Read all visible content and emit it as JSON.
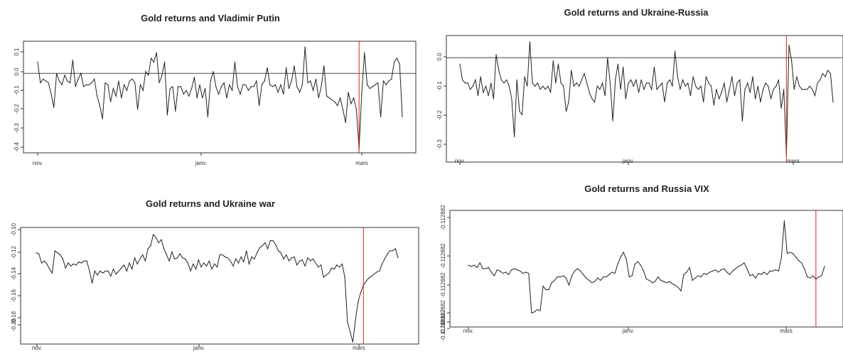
{
  "chart_data": [
    {
      "type": "line",
      "title": "Gold returns and Vladimir Putin",
      "x_ticks": [
        "nov.",
        "janv.",
        "mars"
      ],
      "y_ticks": [
        "0.1",
        "0.0",
        "-0.1",
        "-0.2",
        "-0.3",
        "-0.4"
      ],
      "ylim": [
        -0.42,
        0.17
      ],
      "hline": 0.0,
      "event_index": 119,
      "series": [
        {
          "values": [
            0.06,
            -0.05,
            -0.03,
            -0.04,
            -0.05,
            -0.11,
            -0.18,
            0.0,
            -0.04,
            -0.06,
            -0.01,
            -0.04,
            -0.05,
            0.07,
            -0.07,
            -0.03,
            0.0,
            -0.07,
            -0.06,
            -0.06,
            -0.05,
            -0.03,
            -0.12,
            -0.17,
            -0.24,
            -0.05,
            -0.06,
            -0.15,
            -0.08,
            -0.12,
            -0.04,
            -0.13,
            -0.06,
            -0.09,
            -0.04,
            -0.03,
            -0.05,
            -0.19,
            -0.06,
            -0.09,
            0.01,
            -0.01,
            0.08,
            0.06,
            0.11,
            -0.05,
            -0.01,
            0.06,
            -0.22,
            -0.08,
            -0.07,
            -0.2,
            -0.07,
            -0.07,
            -0.11,
            -0.09,
            -0.12,
            -0.08,
            -0.02,
            -0.13,
            -0.06,
            -0.13,
            -0.08,
            -0.23,
            -0.04,
            0.01,
            -0.07,
            -0.11,
            -0.07,
            -0.05,
            -0.13,
            -0.06,
            -0.09,
            0.06,
            -0.07,
            -0.11,
            -0.06,
            -0.06,
            -0.09,
            -0.07,
            -0.07,
            -0.04,
            -0.17,
            -0.06,
            -0.04,
            0.03,
            -0.06,
            -0.07,
            -0.06,
            -0.1,
            -0.06,
            -0.11,
            0.03,
            -0.08,
            -0.04,
            0.04,
            -0.07,
            -0.1,
            -0.06,
            0.14,
            -0.05,
            -0.04,
            -0.09,
            -0.03,
            -0.13,
            -0.07,
            0.04,
            -0.12,
            -0.13,
            -0.14,
            -0.15,
            -0.17,
            -0.13,
            -0.19,
            -0.26,
            -0.1,
            -0.16,
            -0.13,
            -0.19,
            -0.4,
            -0.1,
            0.11,
            -0.06,
            -0.08,
            -0.07,
            -0.06,
            -0.05,
            -0.23,
            -0.04,
            -0.06,
            -0.04,
            -0.03,
            0.06,
            0.08,
            0.05,
            -0.23
          ]
        }
      ]
    },
    {
      "type": "line",
      "title": "Gold returns and Ukraine-Russia",
      "x_ticks": [
        "nov.",
        "janv.",
        "mars"
      ],
      "y_ticks": [
        "0.0",
        "-0.1",
        "-0.2",
        "-0.3"
      ],
      "ylim": [
        -0.33,
        0.07
      ],
      "hline": 0.0,
      "event_index": 126,
      "series": [
        {
          "values": [
            -0.02,
            -0.07,
            -0.08,
            -0.08,
            -0.1,
            -0.09,
            -0.07,
            -0.12,
            -0.06,
            -0.11,
            -0.09,
            -0.12,
            -0.08,
            -0.13,
            0.01,
            -0.04,
            -0.07,
            -0.08,
            -0.07,
            -0.09,
            -0.13,
            -0.25,
            -0.07,
            -0.17,
            -0.18,
            -0.06,
            -0.09,
            0.05,
            -0.08,
            -0.09,
            -0.08,
            -0.1,
            -0.09,
            -0.1,
            -0.09,
            -0.11,
            -0.01,
            -0.08,
            -0.02,
            -0.08,
            -0.09,
            -0.17,
            -0.14,
            -0.04,
            -0.09,
            -0.08,
            -0.09,
            -0.07,
            -0.05,
            -0.08,
            -0.11,
            -0.13,
            -0.14,
            -0.09,
            -0.1,
            -0.08,
            -0.12,
            0.0,
            -0.08,
            -0.2,
            -0.07,
            -0.02,
            -0.1,
            -0.03,
            -0.13,
            -0.08,
            -0.07,
            -0.09,
            -0.07,
            -0.11,
            -0.07,
            -0.1,
            -0.08,
            -0.08,
            -0.1,
            -0.03,
            -0.1,
            -0.09,
            -0.08,
            -0.14,
            -0.08,
            -0.07,
            -0.09,
            0.02,
            -0.06,
            -0.1,
            -0.07,
            -0.09,
            -0.08,
            -0.12,
            -0.06,
            -0.09,
            -0.1,
            -0.09,
            -0.14,
            -0.06,
            -0.08,
            -0.09,
            -0.15,
            -0.1,
            -0.13,
            -0.11,
            -0.08,
            -0.14,
            -0.1,
            -0.06,
            -0.12,
            -0.08,
            -0.07,
            -0.2,
            -0.1,
            -0.08,
            -0.11,
            -0.06,
            -0.13,
            -0.09,
            -0.14,
            -0.1,
            -0.08,
            -0.09,
            -0.13,
            -0.1,
            -0.09,
            -0.07,
            -0.16,
            -0.1,
            -0.31,
            0.04,
            -0.01,
            -0.1,
            -0.06,
            -0.09,
            -0.1,
            -0.1,
            -0.1,
            -0.09,
            -0.1,
            -0.12,
            -0.08,
            -0.07,
            -0.05,
            -0.06,
            -0.04,
            -0.05,
            -0.14
          ]
        }
      ]
    },
    {
      "type": "line",
      "title": "Gold returns and Ukraine war",
      "x_ticks": [
        "nov.",
        "janv.",
        "mars"
      ],
      "y_ticks": [
        "-0.10",
        "-0.12",
        "-0.14",
        "-0.16",
        "-0.18",
        "-0.20"
      ],
      "ylim": [
        -0.212,
        -0.097
      ],
      "event_index": 123,
      "series": [
        {
          "values": [
            -0.122,
            -0.123,
            -0.132,
            -0.13,
            -0.133,
            -0.138,
            -0.142,
            -0.12,
            -0.122,
            -0.124,
            -0.128,
            -0.137,
            -0.132,
            -0.135,
            -0.133,
            -0.134,
            -0.131,
            -0.132,
            -0.13,
            -0.13,
            -0.14,
            -0.152,
            -0.14,
            -0.144,
            -0.14,
            -0.142,
            -0.14,
            -0.14,
            -0.145,
            -0.138,
            -0.143,
            -0.14,
            -0.137,
            -0.134,
            -0.14,
            -0.132,
            -0.138,
            -0.127,
            -0.133,
            -0.128,
            -0.124,
            -0.13,
            -0.118,
            -0.115,
            -0.104,
            -0.107,
            -0.112,
            -0.109,
            -0.118,
            -0.124,
            -0.13,
            -0.121,
            -0.128,
            -0.127,
            -0.123,
            -0.127,
            -0.128,
            -0.132,
            -0.14,
            -0.133,
            -0.138,
            -0.129,
            -0.136,
            -0.132,
            -0.135,
            -0.13,
            -0.138,
            -0.133,
            -0.136,
            -0.124,
            -0.124,
            -0.126,
            -0.127,
            -0.13,
            -0.135,
            -0.128,
            -0.132,
            -0.126,
            -0.131,
            -0.12,
            -0.133,
            -0.126,
            -0.128,
            -0.122,
            -0.117,
            -0.115,
            -0.112,
            -0.118,
            -0.11,
            -0.11,
            -0.114,
            -0.12,
            -0.122,
            -0.128,
            -0.124,
            -0.13,
            -0.127,
            -0.126,
            -0.134,
            -0.13,
            -0.129,
            -0.135,
            -0.127,
            -0.13,
            -0.128,
            -0.132,
            -0.136,
            -0.134,
            -0.146,
            -0.144,
            -0.142,
            -0.137,
            -0.138,
            -0.134,
            -0.136,
            -0.133,
            -0.146,
            -0.19,
            -0.2,
            -0.21,
            -0.188,
            -0.17,
            -0.161,
            -0.154,
            -0.15,
            -0.147,
            -0.145,
            -0.143,
            -0.141,
            -0.14,
            -0.133,
            -0.128,
            -0.123,
            -0.12,
            -0.12,
            -0.118,
            -0.127
          ]
        }
      ]
    },
    {
      "type": "line",
      "title": "Gold returns and Russia VIX",
      "x_ticks": [
        "nov.",
        "janv.",
        "mars"
      ],
      "y_ticks": [
        "-0.112882",
        "-0.112882",
        "-0.112882",
        "-0.112882",
        "-0.112882",
        "-0.112882"
      ],
      "ylim": [
        0,
        1
      ],
      "event_index": 121,
      "series": [
        {
          "values": [
            0.53,
            0.52,
            0.53,
            0.51,
            0.55,
            0.5,
            0.5,
            0.51,
            0.47,
            0.44,
            0.49,
            0.48,
            0.46,
            0.47,
            0.45,
            0.49,
            0.5,
            0.49,
            0.48,
            0.46,
            0.47,
            0.46,
            0.12,
            0.13,
            0.15,
            0.14,
            0.35,
            0.32,
            0.32,
            0.38,
            0.4,
            0.43,
            0.43,
            0.44,
            0.42,
            0.36,
            0.44,
            0.48,
            0.5,
            0.48,
            0.45,
            0.42,
            0.4,
            0.38,
            0.39,
            0.42,
            0.4,
            0.43,
            0.43,
            0.45,
            0.47,
            0.46,
            0.54,
            0.6,
            0.64,
            0.58,
            0.43,
            0.44,
            0.54,
            0.56,
            0.53,
            0.48,
            0.41,
            0.4,
            0.38,
            0.39,
            0.43,
            0.4,
            0.39,
            0.38,
            0.39,
            0.37,
            0.36,
            0.34,
            0.31,
            0.45,
            0.47,
            0.51,
            0.4,
            0.42,
            0.44,
            0.43,
            0.46,
            0.45,
            0.47,
            0.48,
            0.49,
            0.47,
            0.49,
            0.5,
            0.47,
            0.45,
            0.48,
            0.5,
            0.52,
            0.53,
            0.55,
            0.5,
            0.44,
            0.45,
            0.42,
            0.46,
            0.45,
            0.47,
            0.45,
            0.48,
            0.48,
            0.49,
            0.48,
            0.6,
            0.91,
            0.63,
            0.64,
            0.63,
            0.6,
            0.57,
            0.55,
            0.5,
            0.43,
            0.42,
            0.44,
            0.41,
            0.43,
            0.44,
            0.52
          ]
        }
      ]
    }
  ]
}
